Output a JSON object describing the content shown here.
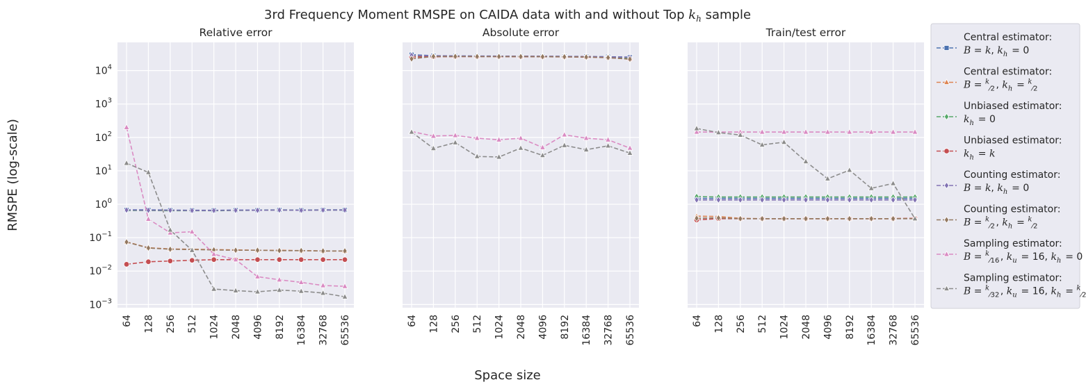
{
  "figure": {
    "title": "3rd Frequency Moment RMSPE on CAIDA data with and without Top k_h sample",
    "xlabel": "Space size",
    "ylabel": "RMSPE (log-scale)"
  },
  "colors": {
    "background": "#ffffff",
    "panel": "#eaeaf2",
    "grid": "#ffffff",
    "text": "#262626"
  },
  "chart_data": {
    "type": "line",
    "x": [
      64,
      128,
      256,
      512,
      1024,
      2048,
      4096,
      8192,
      16384,
      32768,
      65536
    ],
    "x_tick_labels": [
      "64",
      "128",
      "256",
      "512",
      "1024",
      "2048",
      "4096",
      "8192",
      "16384",
      "32768",
      "65536"
    ],
    "y_scale": "log",
    "ylim": [
      0.0008,
      70000
    ],
    "y_ticks": [
      0.001,
      0.01,
      0.1,
      1,
      10,
      100,
      1000,
      10000
    ],
    "y_tick_labels": [
      {
        "base": "10",
        "exp": "−3"
      },
      {
        "base": "10",
        "exp": "−2"
      },
      {
        "base": "10",
        "exp": "−1"
      },
      {
        "base": "10",
        "exp": "0"
      },
      {
        "base": "10",
        "exp": "1"
      },
      {
        "base": "10",
        "exp": "2"
      },
      {
        "base": "10",
        "exp": "3"
      },
      {
        "base": "10",
        "exp": "4"
      }
    ],
    "legend_position": "outside-right",
    "series_style": [
      {
        "color": "#4c72b0",
        "marker": "square"
      },
      {
        "color": "#dd8452",
        "marker": "triangle"
      },
      {
        "color": "#55a868",
        "marker": "diamond"
      },
      {
        "color": "#c44e52",
        "marker": "circle"
      },
      {
        "color": "#8172b3",
        "marker": "diamond"
      },
      {
        "color": "#937860",
        "marker": "diamond"
      },
      {
        "color": "#da8bc3",
        "marker": "triangle"
      },
      {
        "color": "#8c8c8c",
        "marker": "triangle"
      }
    ],
    "legend_entries": [
      {
        "line1": "Central estimator:",
        "line2": "B = k, k_h = 0"
      },
      {
        "line1": "Central estimator:",
        "line2": "B = k/2, k_h = k/2"
      },
      {
        "line1": "Unbiased estimator:",
        "line2": "k_h = 0"
      },
      {
        "line1": "Unbiased estimator:",
        "line2": "k_h = k"
      },
      {
        "line1": "Counting estimator:",
        "line2": "B = k, k_h = 0"
      },
      {
        "line1": "Counting estimator:",
        "line2": "B = k/2, k_h = k/2"
      },
      {
        "line1": "Sampling estimator:",
        "line2": "B = k/16, k_u = 16, k_h = 0"
      },
      {
        "line1": "Sampling estimator:",
        "line2": "B = k/32, k_u = 16, k_h = k/2"
      }
    ],
    "panels": [
      {
        "title": "Relative error",
        "series": [
          {
            "values": [
              0.68,
              0.68,
              0.67,
              0.66,
              0.66,
              0.67,
              0.67,
              0.68,
              0.67,
              0.68,
              0.68
            ]
          },
          {
            "values": [
              0.075,
              0.05,
              0.046,
              0.045,
              0.044,
              0.043,
              0.042,
              0.042,
              0.041,
              0.04,
              0.04
            ]
          },
          {
            "values": [
              0.65,
              0.65,
              0.64,
              0.64,
              0.64,
              0.65,
              0.66,
              0.67,
              0.66,
              0.67,
              0.67
            ]
          },
          {
            "values": [
              0.016,
              0.019,
              0.02,
              0.021,
              0.022,
              0.022,
              0.022,
              0.022,
              0.022,
              0.022,
              0.022
            ]
          },
          {
            "values": [
              0.67,
              0.66,
              0.66,
              0.65,
              0.65,
              0.66,
              0.66,
              0.67,
              0.66,
              0.67,
              0.67
            ]
          },
          {
            "values": [
              0.074,
              0.049,
              0.045,
              0.044,
              0.043,
              0.042,
              0.042,
              0.041,
              0.041,
              0.04,
              0.04
            ]
          },
          {
            "values": [
              200,
              0.36,
              0.14,
              0.15,
              0.032,
              0.022,
              0.0068,
              0.0055,
              0.0046,
              0.0037,
              0.0035
            ]
          },
          {
            "values": [
              17,
              9,
              0.17,
              0.042,
              0.0029,
              0.0026,
              0.0024,
              0.0027,
              0.0025,
              0.0022,
              0.0017
            ]
          }
        ]
      },
      {
        "title": "Absolute error",
        "series": [
          {
            "values": [
              30000,
              28000,
              27500,
              27300,
              27200,
              27100,
              26900,
              26700,
              26500,
              26000,
              25500
            ]
          },
          {
            "values": [
              27000,
              27200,
              27000,
              26900,
              26900,
              26800,
              26700,
              26500,
              26300,
              25500,
              24000
            ]
          },
          {
            "values": [
              26000,
              26500,
              26600,
              26500,
              26500,
              26400,
              26200,
              26000,
              25600,
              25000,
              24000
            ]
          },
          {
            "values": [
              25500,
              26000,
              26300,
              26300,
              26200,
              26100,
              26000,
              25800,
              25300,
              24500,
              22000
            ]
          },
          {
            "values": [
              28500,
              27800,
              27400,
              27200,
              27100,
              27000,
              26800,
              26600,
              26300,
              25700,
              25000
            ]
          },
          {
            "values": [
              22500,
              26500,
              26500,
              26400,
              26400,
              26300,
              26100,
              25900,
              25500,
              24500,
              22000
            ]
          },
          {
            "values": [
              150,
              110,
              115,
              95,
              85,
              95,
              50,
              120,
              95,
              85,
              48
            ]
          },
          {
            "values": [
              145,
              47,
              70,
              27,
              26,
              48,
              29,
              58,
              43,
              56,
              34
            ]
          }
        ]
      },
      {
        "title": "Train/test error",
        "series": [
          {
            "values": [
              1.5,
              1.5,
              1.5,
              1.5,
              1.5,
              1.5,
              1.5,
              1.5,
              1.5,
              1.5,
              1.5
            ]
          },
          {
            "values": [
              0.44,
              0.43,
              0.38,
              0.37,
              0.37,
              0.37,
              0.37,
              0.37,
              0.37,
              0.37,
              0.38
            ]
          },
          {
            "values": [
              1.7,
              1.65,
              1.65,
              1.65,
              1.65,
              1.65,
              1.65,
              1.65,
              1.65,
              1.65,
              1.65
            ]
          },
          {
            "values": [
              0.34,
              0.37,
              0.37,
              0.37,
              0.37,
              0.37,
              0.37,
              0.37,
              0.37,
              0.37,
              0.38
            ]
          },
          {
            "values": [
              1.35,
              1.35,
              1.35,
              1.35,
              1.35,
              1.35,
              1.35,
              1.35,
              1.35,
              1.35,
              1.35
            ]
          },
          {
            "values": [
              0.38,
              0.39,
              0.37,
              0.37,
              0.37,
              0.37,
              0.37,
              0.37,
              0.37,
              0.37,
              0.37
            ]
          },
          {
            "values": [
              145,
              145,
              145,
              145,
              145,
              145,
              145,
              145,
              145,
              145,
              145
            ]
          },
          {
            "values": [
              185,
              140,
              118,
              60,
              72,
              19,
              5.8,
              10.5,
              3.0,
              4.2,
              0.37
            ]
          }
        ]
      }
    ]
  }
}
